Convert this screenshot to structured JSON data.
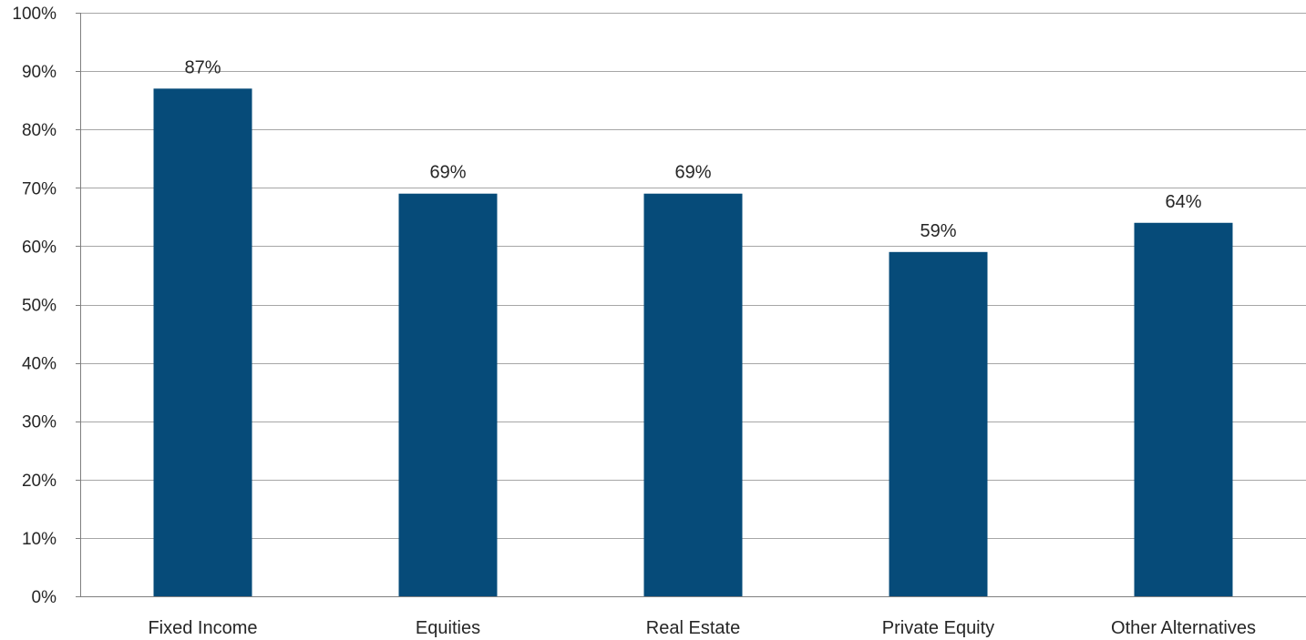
{
  "chart_data": {
    "type": "bar",
    "categories": [
      "Fixed Income",
      "Equities",
      "Real Estate",
      "Private Equity",
      "Other Alternatives"
    ],
    "values": [
      87,
      69,
      69,
      59,
      64
    ],
    "value_labels": [
      "87%",
      "69%",
      "69%",
      "59%",
      "64%"
    ],
    "title": "",
    "xlabel": "",
    "ylabel": "",
    "ylim": [
      0,
      100
    ],
    "y_ticks": [
      0,
      10,
      20,
      30,
      40,
      50,
      60,
      70,
      80,
      90,
      100
    ],
    "y_tick_labels": [
      "0%",
      "10%",
      "20%",
      "30%",
      "40%",
      "50%",
      "60%",
      "70%",
      "80%",
      "90%",
      "100%"
    ],
    "grid": true,
    "legend": "none",
    "bar_color": "#064B79"
  }
}
